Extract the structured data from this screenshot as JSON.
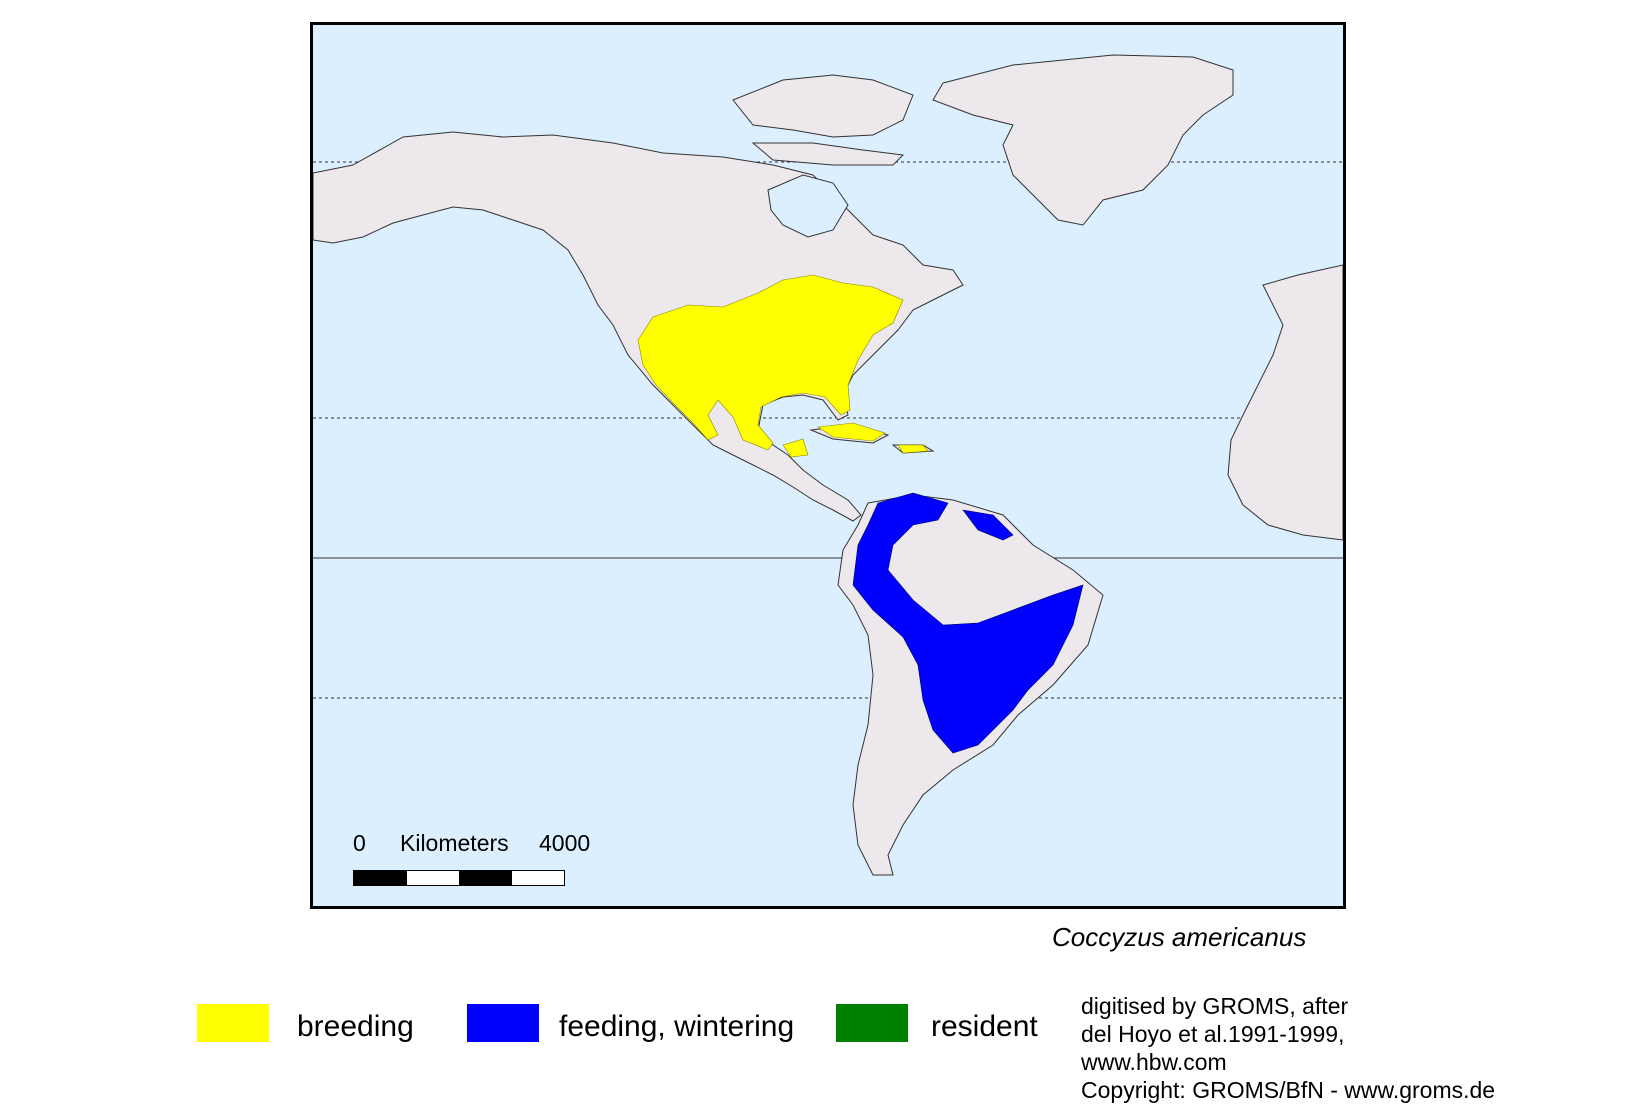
{
  "map": {
    "species": "Coccyzus americanus",
    "scale_bar": {
      "zero_label": "0",
      "unit_label": "Kilometers",
      "max_label": "4000"
    },
    "colors": {
      "ocean": "#dcefff",
      "land": "#ece8ec",
      "breeding": "#ffff00",
      "feeding_wintering": "#0000ff",
      "resident": "#008000"
    }
  },
  "legend": [
    {
      "label": "breeding",
      "color": "#ffff00"
    },
    {
      "label": "feeding, wintering",
      "color": "#0000ff"
    },
    {
      "label": "resident",
      "color": "#008000"
    }
  ],
  "credits": {
    "line1": "digitised by GROMS, after",
    "line2": "del Hoyo et al.1991-1999,",
    "line3": "www.hbw.com",
    "line4": "Copyright: GROMS/BfN - www.groms.de"
  }
}
